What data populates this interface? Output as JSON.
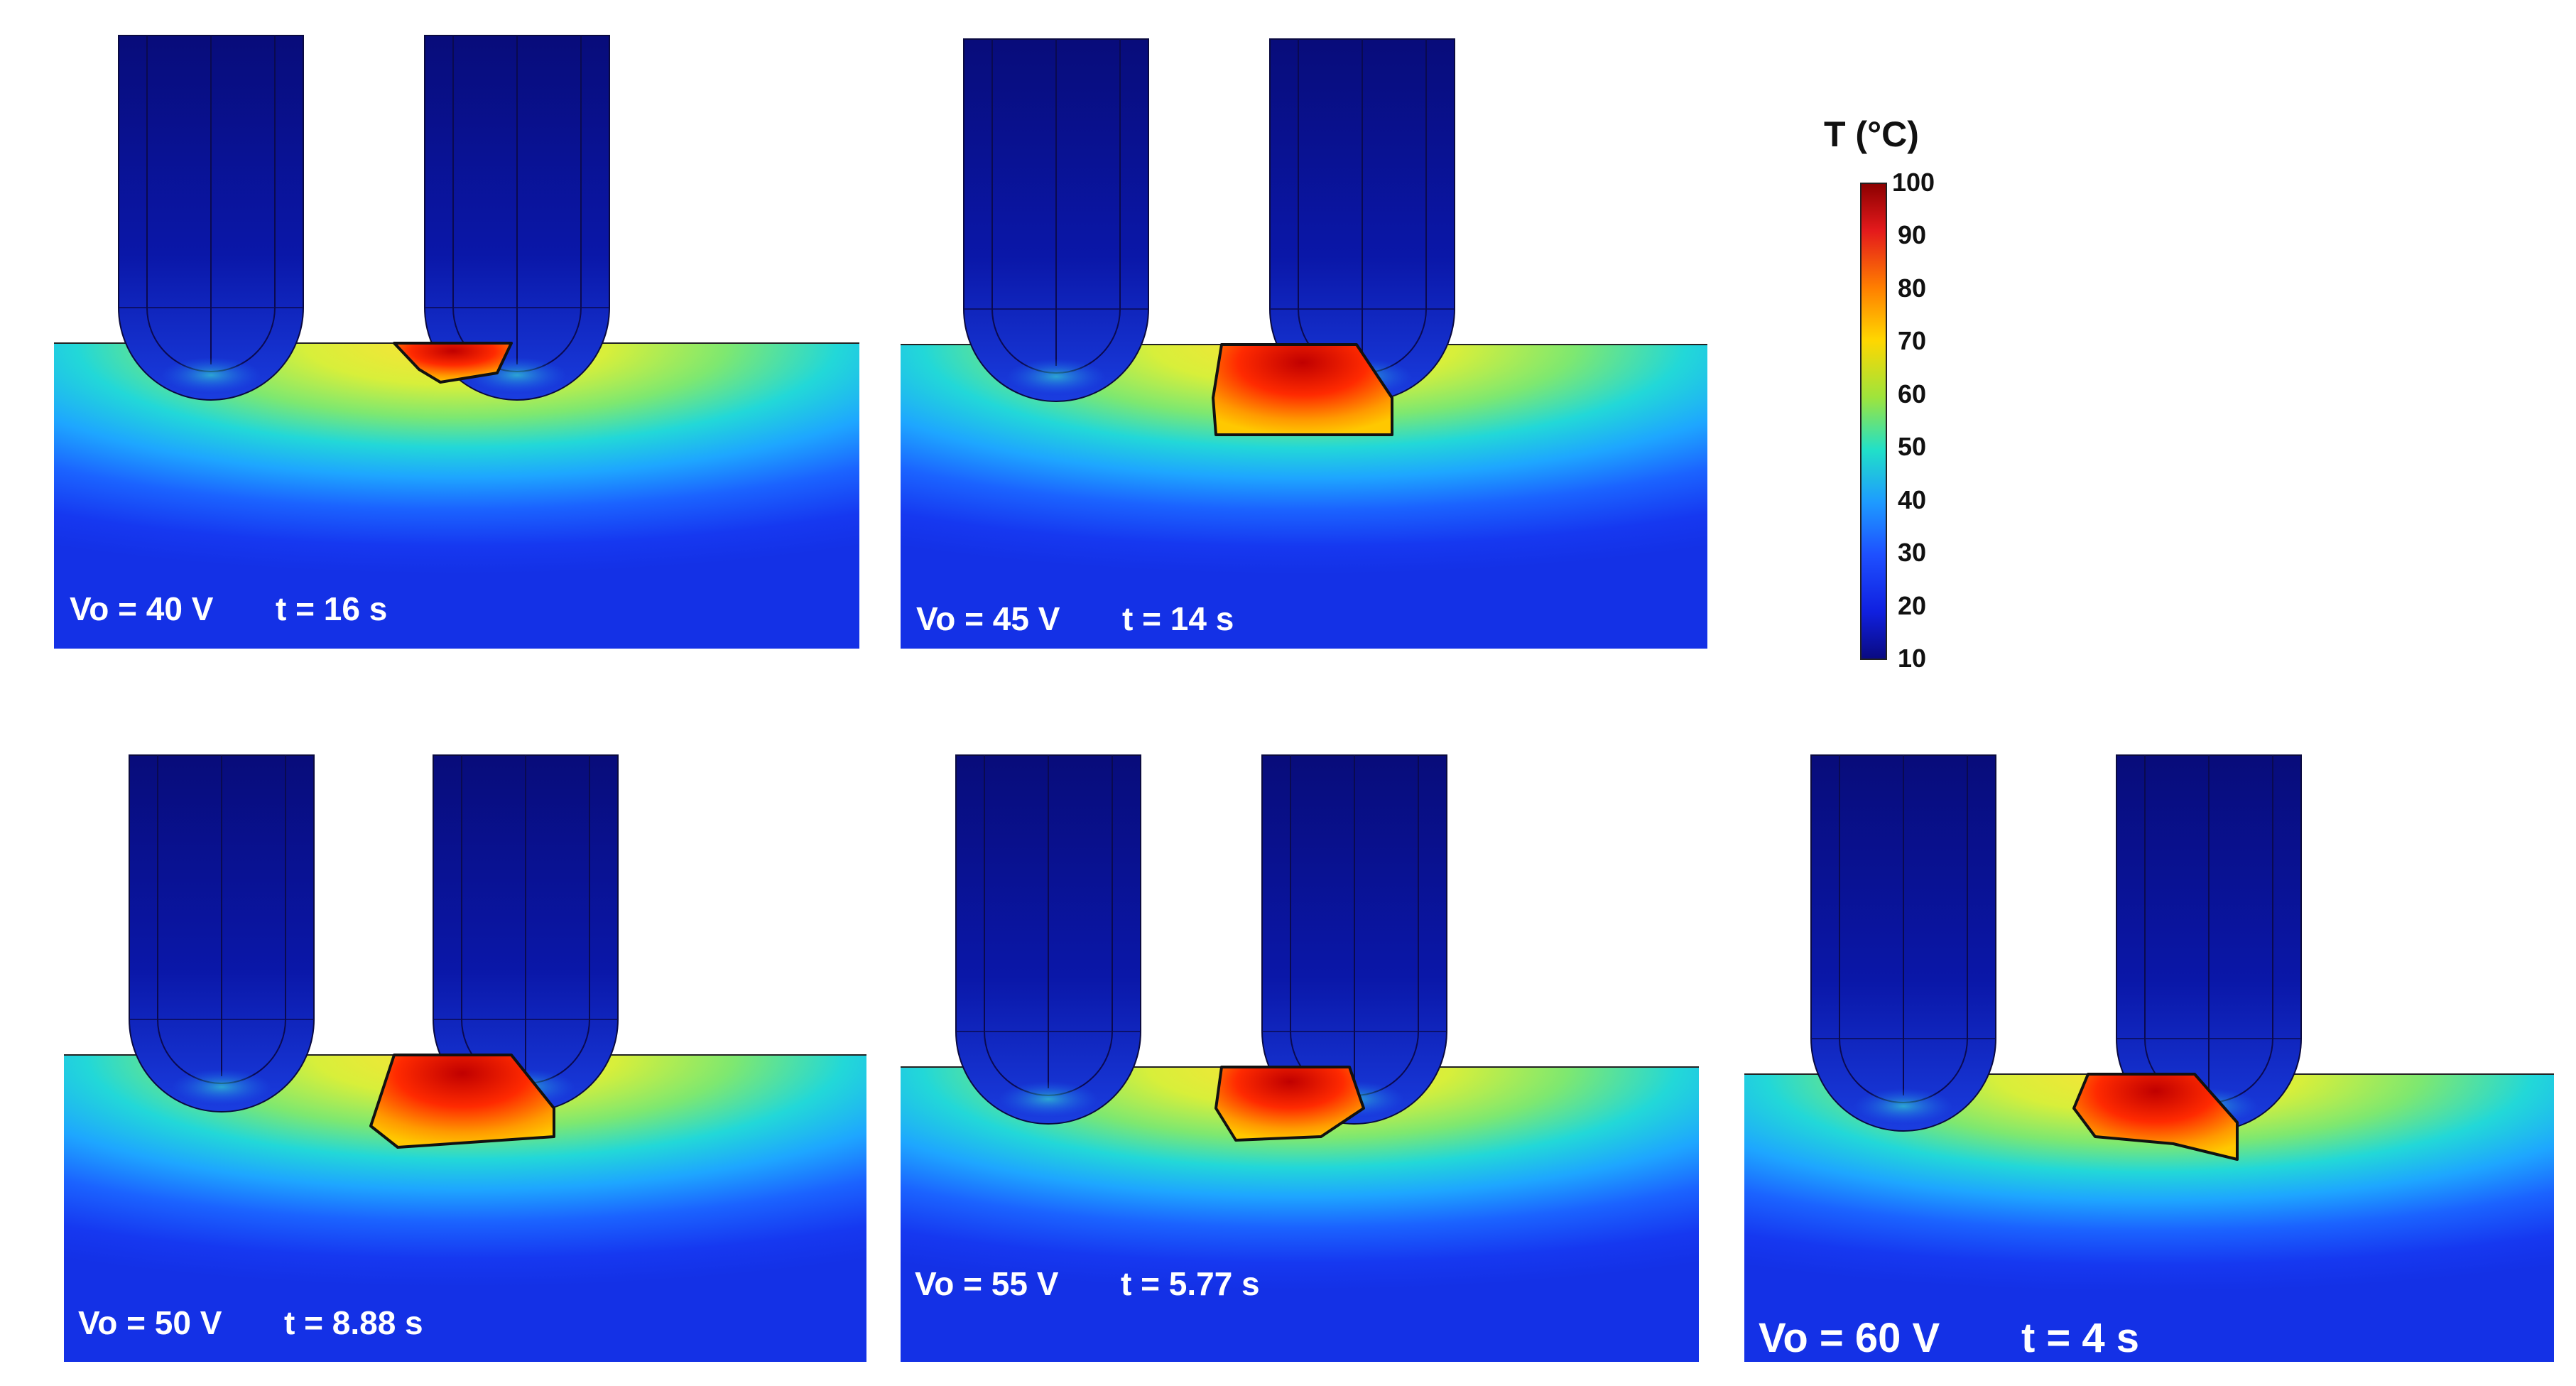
{
  "panels": [
    {
      "voltage": "Vo = 40 V",
      "time": "t = 16 s"
    },
    {
      "voltage": "Vo = 45 V",
      "time": "t = 14 s"
    },
    {
      "voltage": "Vo = 50 V",
      "time": "t = 8.88 s"
    },
    {
      "voltage": "Vo = 55 V",
      "time": "t = 5.77 s"
    },
    {
      "voltage": "Vo = 60 V",
      "time": "t = 4 s"
    }
  ],
  "colorbar": {
    "title": "T (°C)",
    "ticks": [
      "100",
      "90",
      "80",
      "70",
      "60",
      "50",
      "40",
      "30",
      "20",
      "10"
    ],
    "colors": [
      "#8b0000",
      "#e41a1c",
      "#ff7f00",
      "#ffd700",
      "#9ee43c",
      "#21e0c8",
      "#1e9bff",
      "#1e50ff",
      "#1020e0",
      "#0a0a80"
    ]
  }
}
